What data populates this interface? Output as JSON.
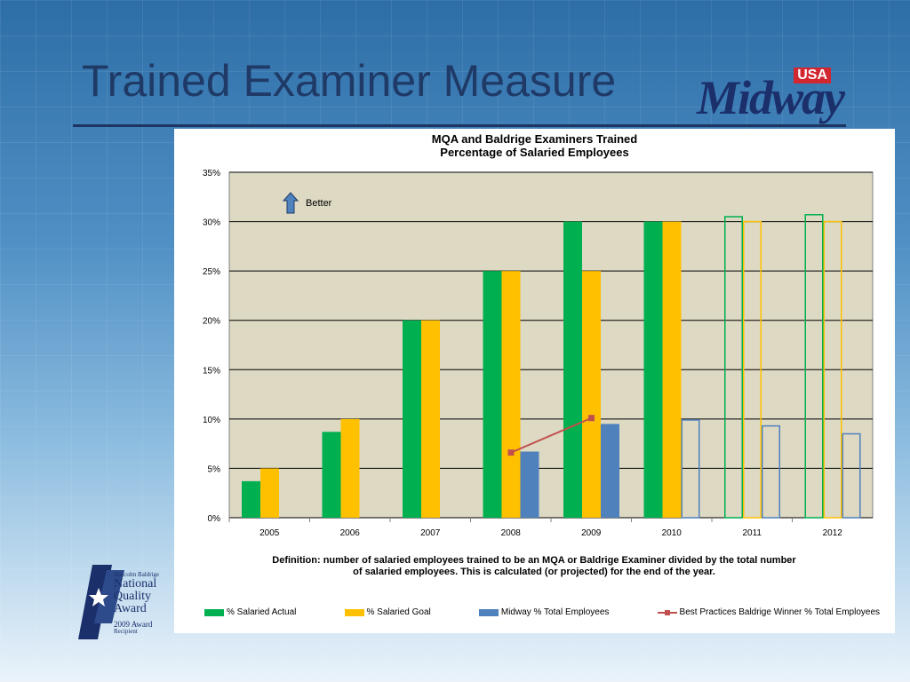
{
  "slide": {
    "title": "Trained Examiner Measure",
    "logo_usa": "USA",
    "logo_text": "Midway",
    "award": {
      "line1": "Malcolm Baldrige",
      "line2": "National",
      "line3": "Quality",
      "line4": "Award",
      "line5": "2009 Award",
      "line6": "Recipient"
    }
  },
  "chart_data": {
    "type": "bar",
    "title": "MQA and Baldrige Examiners Trained",
    "subtitle": "Percentage of Salaried Employees",
    "categories": [
      "2005",
      "2006",
      "2007",
      "2008",
      "2009",
      "2010",
      "2011",
      "2012"
    ],
    "ylim": [
      0,
      35
    ],
    "yticks": [
      "0%",
      "5%",
      "10%",
      "15%",
      "20%",
      "25%",
      "30%",
      "35%"
    ],
    "grid": true,
    "annotation": "Better",
    "series": [
      {
        "name": "% Salaried Actual",
        "color": "#00b050",
        "values": [
          3.7,
          8.7,
          20,
          25,
          30,
          30,
          30.5,
          30.7
        ],
        "projected_from": 6
      },
      {
        "name": "% Salaried Goal",
        "color": "#ffc000",
        "values": [
          5,
          10,
          20,
          25,
          25,
          30,
          30,
          30
        ],
        "projected_from": 6
      },
      {
        "name": "Midway % Total Employees",
        "color": "#4f81bd",
        "values": [
          null,
          null,
          null,
          6.7,
          9.5,
          9.9,
          9.3,
          8.5
        ],
        "projected_from": 5
      },
      {
        "name": "Best Practices Baldrige Winner % Total Employees",
        "color": "#c0504d",
        "kind": "line",
        "values": [
          null,
          null,
          null,
          6.6,
          10.1,
          null,
          null,
          null
        ]
      }
    ],
    "definition_line1": "Definition: number of salaried employees trained to be an MQA or Baldrige Examiner divided by the total number",
    "definition_line2": "of salaried employees. This is calculated (or projected) for the end of the year.",
    "legend_position": "bottom"
  }
}
